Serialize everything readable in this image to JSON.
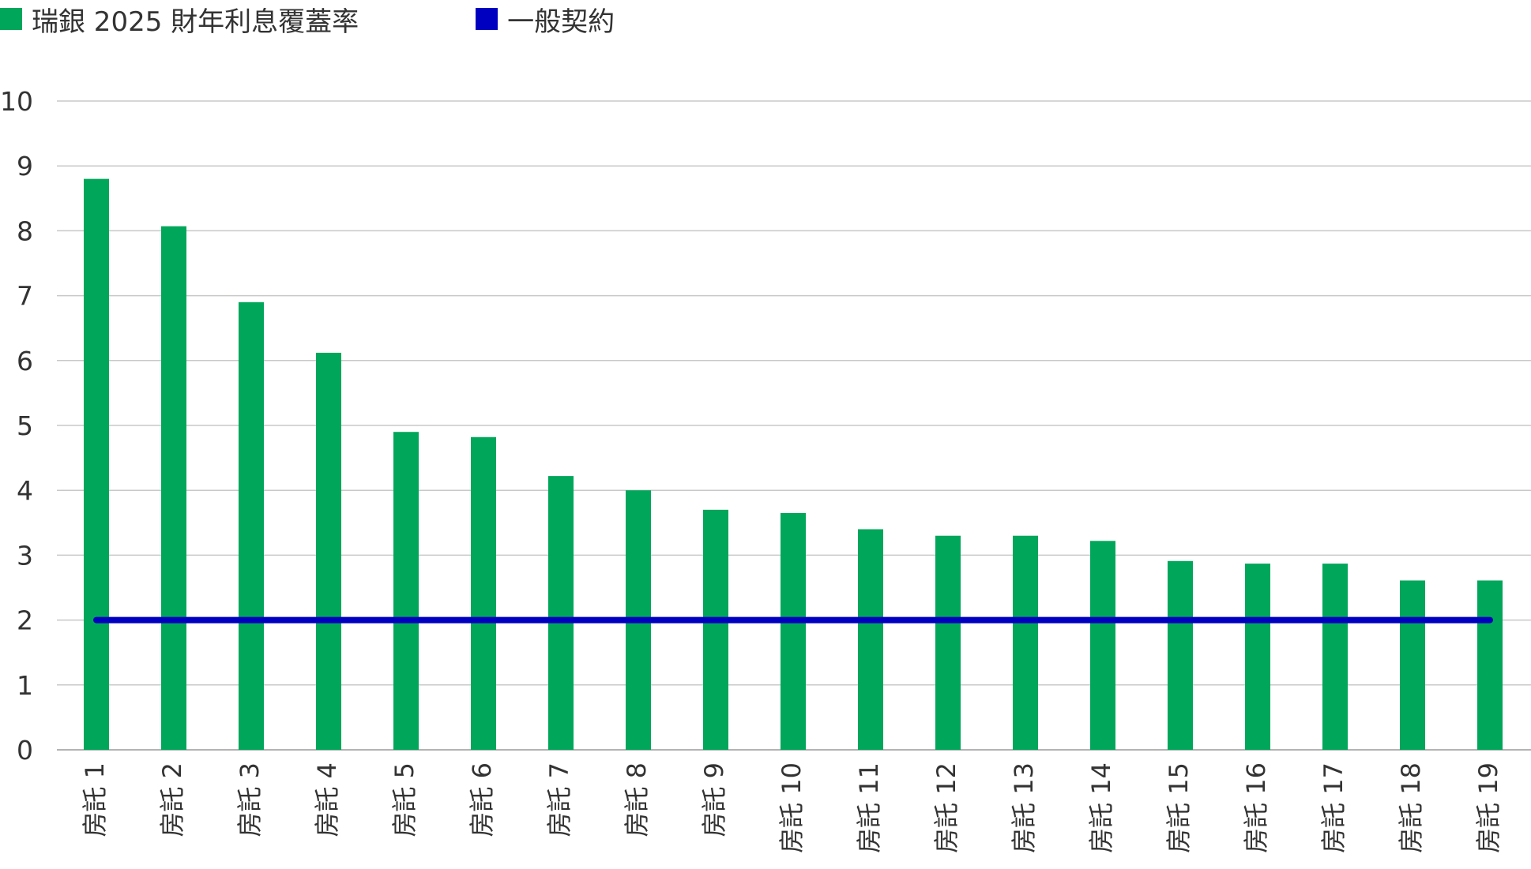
{
  "legend": [
    {
      "label": "瑞銀 2025 財年利息覆蓋率",
      "color": "#00A65A"
    },
    {
      "label": "一般契約",
      "color": "#0000C0"
    }
  ],
  "chart_data": {
    "type": "bar",
    "categories": [
      "房託 1",
      "房託 2",
      "房託 3",
      "房託 4",
      "房託 5",
      "房託 6",
      "房託 7",
      "房託 8",
      "房託 9",
      "房託 10",
      "房託 11",
      "房託 12",
      "房託 13",
      "房託 14",
      "房託 15",
      "房託 16",
      "房託 17",
      "房託 18",
      "房託 19"
    ],
    "series": [
      {
        "name": "瑞銀 2025 財年利息覆蓋率",
        "type": "bar",
        "color": "#00A65A",
        "values": [
          8.8,
          8.07,
          6.9,
          6.12,
          4.9,
          4.82,
          4.22,
          4.0,
          3.7,
          3.65,
          3.4,
          3.3,
          3.3,
          3.22,
          2.91,
          2.87,
          2.87,
          2.61,
          2.61
        ]
      },
      {
        "name": "一般契約",
        "type": "line",
        "color": "#0000C0",
        "values": [
          2.0,
          2.0,
          2.0,
          2.0,
          2.0,
          2.0,
          2.0,
          2.0,
          2.0,
          2.0,
          2.0,
          2.0,
          2.0,
          2.0,
          2.0,
          2.0,
          2.0,
          2.0,
          2.0
        ]
      }
    ],
    "yticks": [
      0,
      1,
      2,
      3,
      4,
      5,
      6,
      7,
      8,
      9,
      10
    ],
    "ylim": [
      0,
      10
    ],
    "grid": true,
    "legend_position": "top-left"
  }
}
